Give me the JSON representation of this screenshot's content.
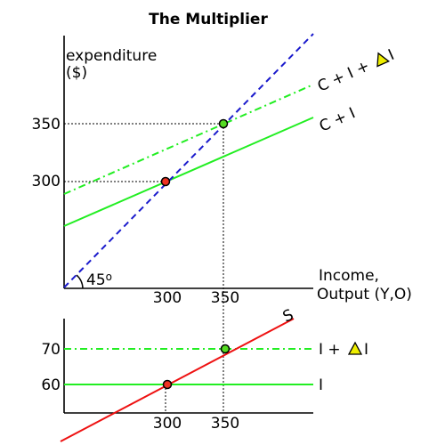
{
  "chart_data": [
    {
      "type": "line",
      "title": "The Multiplier",
      "ylabel_line1": "expenditure",
      "ylabel_line2": "($)",
      "xlabel_line1": "Income,",
      "xlabel_line2": "Output (Y,O)",
      "angle_label": "45",
      "angle_sup": "o",
      "x_ticks": [
        300,
        350
      ],
      "y_ticks": [
        300,
        350
      ],
      "series": [
        {
          "name": "C + I",
          "label_base": "C + I",
          "style": "solid",
          "color": "#22ee22"
        },
        {
          "name": "C + I + ΔI",
          "label_base": "C + I +",
          "label_suffix": "I",
          "style": "dashdot",
          "color": "#22ee22"
        },
        {
          "name": "",
          "style": "dashed",
          "color": "#1a1acc"
        }
      ],
      "equilibria": [
        {
          "x": 300,
          "y": 300,
          "color": "#ee3322"
        },
        {
          "x": 350,
          "y": 350,
          "color": "#55dd22"
        }
      ]
    },
    {
      "type": "line",
      "x_ticks": [
        300,
        350
      ],
      "y_ticks": [
        60,
        70
      ],
      "series": [
        {
          "name": "S",
          "label_base": "S",
          "style": "solid",
          "color": "#ee1111"
        },
        {
          "name": "I",
          "label_base": "I",
          "style": "solid",
          "color": "#22ee22"
        },
        {
          "name": "I + ΔI",
          "label_base": "I +",
          "label_suffix": "I",
          "style": "dashdot",
          "color": "#22ee22"
        }
      ],
      "equilibria": [
        {
          "x": 300,
          "y": 60,
          "color": "#ee3322"
        },
        {
          "x": 350,
          "y": 70,
          "color": "#55dd22"
        }
      ]
    }
  ],
  "delta_color": "#eeee00"
}
